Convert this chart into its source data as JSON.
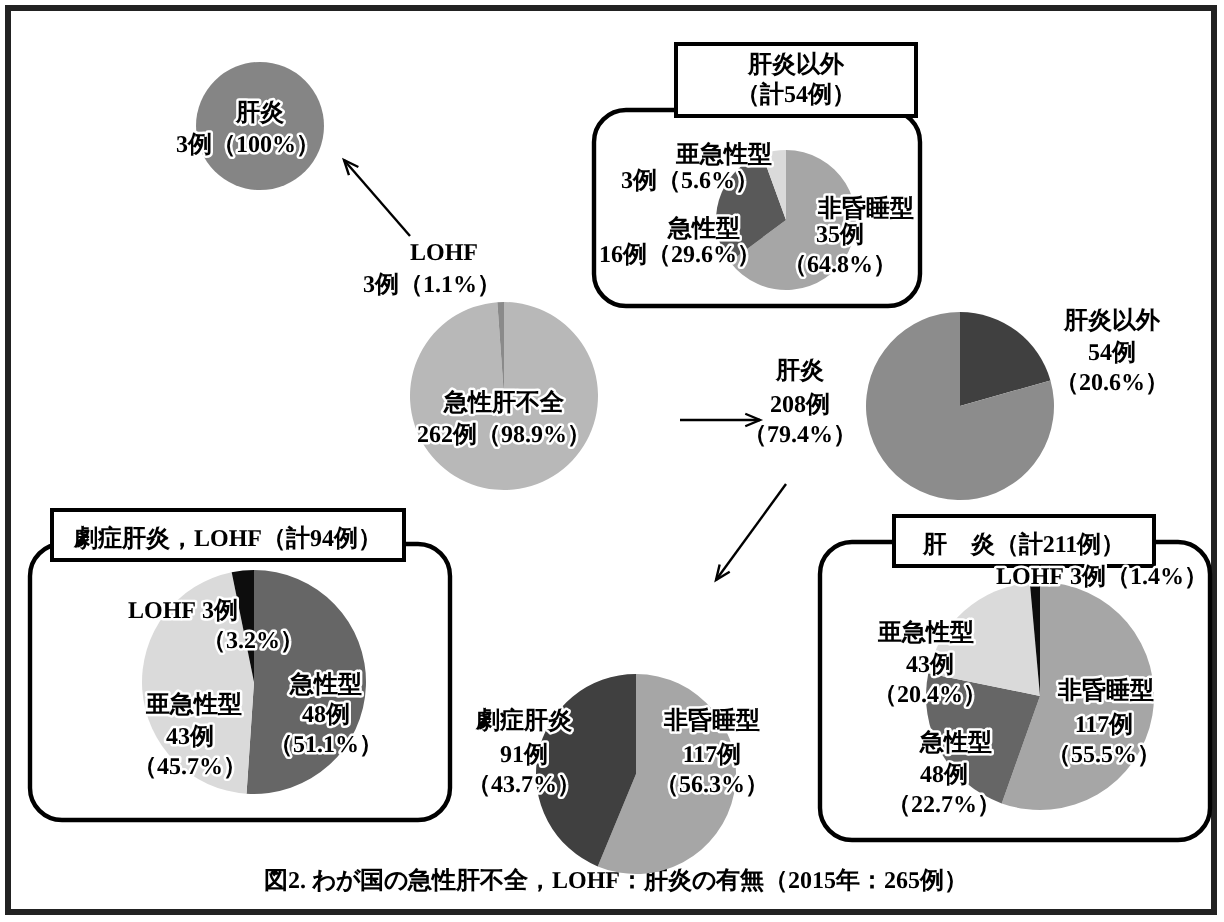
{
  "chart_data": [
    {
      "type": "pie",
      "categories": [
        "肝炎"
      ],
      "values": [
        3
      ],
      "colors": [
        "#858585"
      ],
      "value_labels": [
        "3例（100%）"
      ]
    },
    {
      "type": "pie",
      "title": "肝炎以外（計54例）",
      "categories": [
        "非昏睡型",
        "急性型",
        "亜急性型"
      ],
      "values": [
        35,
        16,
        3
      ],
      "colors": [
        "#a6a6a6",
        "#595959",
        "#dadada"
      ],
      "value_labels": [
        "35例（64.8%）",
        "16例（29.6%）",
        "3例（5.6%）"
      ]
    },
    {
      "type": "pie",
      "categories": [
        "急性肝不全",
        "LOHF"
      ],
      "values": [
        262,
        3
      ],
      "colors": [
        "#b8b8b8",
        "#8a8a8a"
      ],
      "value_labels": [
        "262例（98.9%）",
        "3例（1.1%）"
      ],
      "annotations": [
        "図2. わが国の急性肝不全，LOHF：肝炎の有無（2015年：265例）"
      ]
    },
    {
      "type": "pie",
      "categories": [
        "肝炎以外",
        "肝炎"
      ],
      "values": [
        54,
        208
      ],
      "colors": [
        "#404040",
        "#8c8c8c"
      ],
      "value_labels": [
        "54例（20.6%）",
        "208例（79.4%）"
      ]
    },
    {
      "type": "pie",
      "title": "劇症肝炎，LOHF（計94例）",
      "categories": [
        "急性型",
        "亜急性型",
        "LOHF"
      ],
      "values": [
        48,
        43,
        3
      ],
      "colors": [
        "#666666",
        "#dadada",
        "#0d0d0d"
      ],
      "value_labels": [
        "48例（51.1%）",
        "43例（45.7%）",
        "3例（3.2%）"
      ]
    },
    {
      "type": "pie",
      "categories": [
        "非昏睡型",
        "劇症肝炎"
      ],
      "values": [
        117,
        91
      ],
      "colors": [
        "#a6a6a6",
        "#404040"
      ],
      "value_labels": [
        "117例（56.3%）",
        "91例（43.7%）"
      ]
    },
    {
      "type": "pie",
      "title": "肝　炎（計211例）",
      "categories": [
        "非昏睡型",
        "急性型",
        "亜急性型",
        "LOHF"
      ],
      "values": [
        117,
        48,
        43,
        3
      ],
      "colors": [
        "#a6a6a6",
        "#666666",
        "#dadada",
        "#0d0d0d"
      ],
      "value_labels": [
        "117例（55.5%）",
        "48例（22.7%）",
        "43例（20.4%）",
        "3例（1.4%）"
      ]
    }
  ]
}
